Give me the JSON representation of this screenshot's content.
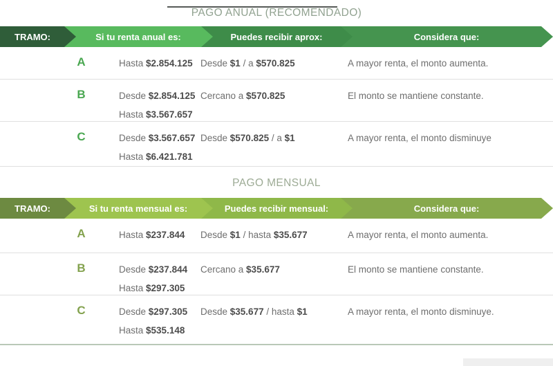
{
  "page": {
    "top_strip_color": "#565a57",
    "bottom_line_color": "#b9c8b7"
  },
  "tables": [
    {
      "title": "PAGO ANUAL (RECOMENDADO)",
      "title_color": "#91a290",
      "headers": {
        "tramo": "TRAMO:",
        "renta": "Si tu renta anual es:",
        "recibe": "Puedes recibir aprox:",
        "considera": "Considera que:"
      },
      "header_colors": {
        "tramo": "#2f5d39",
        "renta": "#58ba5e",
        "recibe": "#3e8c49",
        "considera": "#45944f"
      },
      "letter_color": "#4aa751",
      "rows": [
        {
          "tramo": "A",
          "renta_line1": {
            "t1": "Hasta ",
            "b1": "$2.854.125"
          },
          "recibe_line": {
            "t1": "Desde ",
            "b1": "$1",
            "t2": " / a ",
            "b2": "$570.825"
          },
          "considera": "A mayor renta, el monto aumenta."
        },
        {
          "tramo": "B",
          "renta_line1": {
            "t1": "Desde ",
            "b1": "$2.854.125"
          },
          "renta_line2": {
            "t1": "Hasta ",
            "b1": "$3.567.657"
          },
          "recibe_line": {
            "t1": "Cercano a ",
            "b1": "$570.825"
          },
          "considera": "El monto se mantiene constante."
        },
        {
          "tramo": "C",
          "renta_line1": {
            "t1": "Desde ",
            "b1": "$3.567.657"
          },
          "renta_line2": {
            "t1": "Hasta ",
            "b1": "$6.421.781"
          },
          "recibe_line": {
            "t1": "Desde ",
            "b1": "$570.825",
            "t2": " / a ",
            "b2": "$1"
          },
          "considera": "A mayor renta, el monto disminuye"
        }
      ]
    },
    {
      "title": "PAGO MENSUAL",
      "title_color": "#9dab95",
      "headers": {
        "tramo": "TRAMO:",
        "renta": "Si tu renta mensual es:",
        "recibe": "Puedes recibir mensual:",
        "considera": "Considera que:"
      },
      "header_colors": {
        "tramo": "#6d8a41",
        "renta": "#9ec44f",
        "recibe": "#8fb849",
        "considera": "#87a94c"
      },
      "letter_color": "#83a24e",
      "rows": [
        {
          "tramo": "A",
          "renta_line1": {
            "t1": "Hasta ",
            "b1": "$237.844"
          },
          "recibe_line": {
            "t1": "Desde ",
            "b1": "$1",
            "t2": " / hasta ",
            "b2": "$35.677"
          },
          "considera": "A mayor renta, el monto aumenta."
        },
        {
          "tramo": "B",
          "renta_line1": {
            "t1": "Desde ",
            "b1": "$237.844"
          },
          "renta_line2": {
            "t1": "Hasta ",
            "b1": "$297.305"
          },
          "recibe_line": {
            "t1": "Cercano a ",
            "b1": "$35.677"
          },
          "considera": "El monto se mantiene constante."
        },
        {
          "tramo": "C",
          "renta_line1": {
            "t1": "Desde ",
            "b1": "$297.305"
          },
          "renta_line2": {
            "t1": "Hasta ",
            "b1": "$535.148"
          },
          "recibe_line": {
            "t1": "Desde ",
            "b1": "$35.677",
            "t2": " / hasta ",
            "b2": "$1"
          },
          "considera": "A mayor renta, el monto disminuye."
        }
      ]
    }
  ]
}
